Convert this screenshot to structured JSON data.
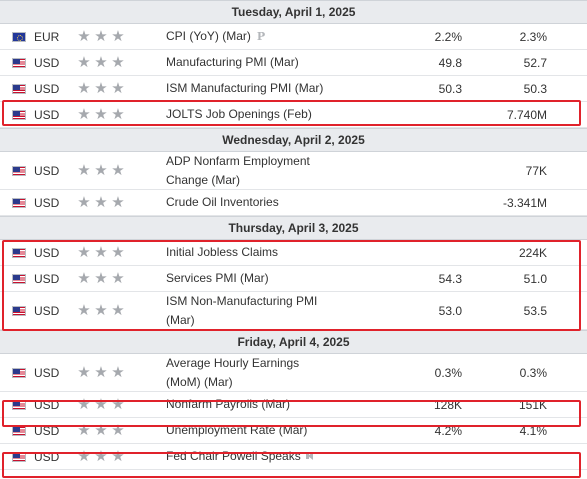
{
  "calendar": {
    "days": [
      {
        "date": "Tuesday, April 1, 2025",
        "events": [
          {
            "currency": "EUR",
            "flag": "eur-flag",
            "stars": 3,
            "event": "CPI (YoY) (Mar)",
            "badge": "P",
            "actual": "2.2%",
            "forecast": "2.3%"
          },
          {
            "currency": "USD",
            "flag": "usd-flag",
            "stars": 3,
            "event": "Manufacturing PMI (Mar)",
            "actual": "49.8",
            "forecast": "52.7"
          },
          {
            "currency": "USD",
            "flag": "usd-flag",
            "stars": 3,
            "event": "ISM Manufacturing PMI (Mar)",
            "actual": "50.3",
            "forecast": "50.3"
          },
          {
            "currency": "USD",
            "flag": "usd-flag",
            "stars": 3,
            "event": "JOLTS Job Openings (Feb)",
            "actual": "",
            "forecast": "7.740M"
          }
        ]
      },
      {
        "date": "Wednesday, April 2, 2025",
        "events": [
          {
            "currency": "USD",
            "flag": "usd-flag",
            "stars": 3,
            "event": "ADP Nonfarm Employment Change (Mar)",
            "actual": "",
            "forecast": "77K"
          },
          {
            "currency": "USD",
            "flag": "usd-flag",
            "stars": 3,
            "event": "Crude Oil Inventories",
            "actual": "",
            "forecast": "-3.341M"
          }
        ]
      },
      {
        "date": "Thursday, April 3, 2025",
        "events": [
          {
            "currency": "USD",
            "flag": "usd-flag",
            "stars": 3,
            "event": "Initial Jobless Claims",
            "actual": "",
            "forecast": "224K"
          },
          {
            "currency": "USD",
            "flag": "usd-flag",
            "stars": 3,
            "event": "Services PMI (Mar)",
            "actual": "54.3",
            "forecast": "51.0"
          },
          {
            "currency": "USD",
            "flag": "usd-flag",
            "stars": 3,
            "event": "ISM Non-Manufacturing PMI (Mar)",
            "actual": "53.0",
            "forecast": "53.5"
          }
        ]
      },
      {
        "date": "Friday, April 4, 2025",
        "events": [
          {
            "currency": "USD",
            "flag": "usd-flag",
            "stars": 3,
            "event": "Average Hourly Earnings (MoM) (Mar)",
            "actual": "0.3%",
            "forecast": "0.3%"
          },
          {
            "currency": "USD",
            "flag": "usd-flag",
            "stars": 3,
            "event": "Nonfarm Payrolls (Mar)",
            "actual": "128K",
            "forecast": "151K"
          },
          {
            "currency": "USD",
            "flag": "usd-flag",
            "stars": 3,
            "event": "Unemployment Rate (Mar)",
            "actual": "4.2%",
            "forecast": "4.1%"
          },
          {
            "currency": "USD",
            "flag": "usd-flag",
            "stars": 3,
            "event": "Fed Chair Powell Speaks",
            "icon": "speaker-icon",
            "actual": "",
            "forecast": ""
          }
        ]
      }
    ]
  },
  "colors": {
    "highlight": "#e0222b",
    "star": "#a6a9ae",
    "date_header_bg": "#e9ebee"
  }
}
